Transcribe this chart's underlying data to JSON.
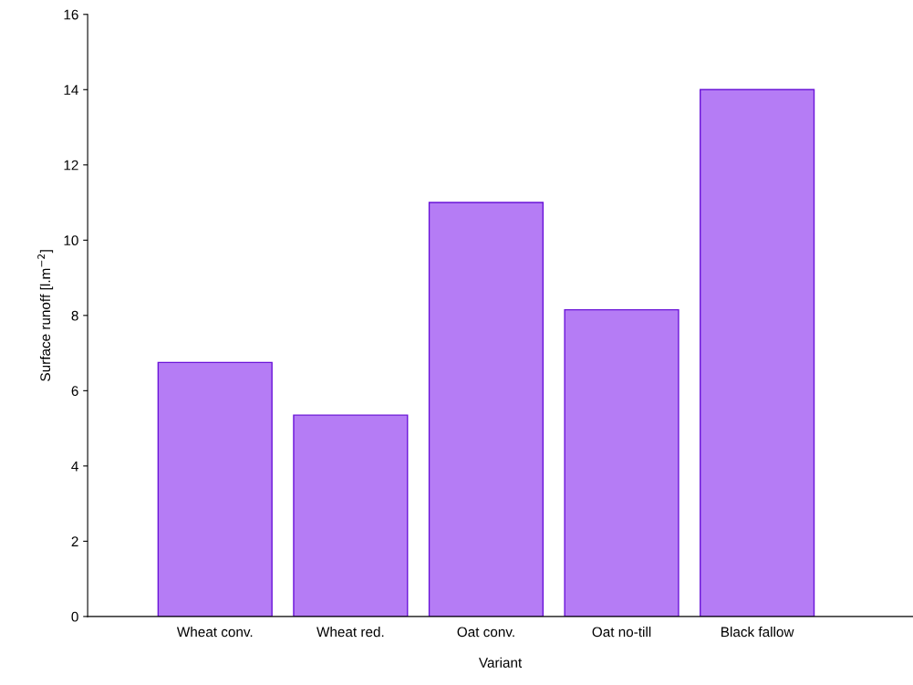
{
  "chart_data": {
    "type": "bar",
    "xlabel": "Variant",
    "ylabel": "Surface runoff [l.m$^{−2}$]",
    "categories": [
      "Wheat conv.",
      "Wheat red.",
      "Oat conv.",
      "Oat no-till",
      "Black fallow"
    ],
    "values": [
      6.75,
      5.35,
      11.0,
      8.15,
      14.0
    ],
    "color": "#b57cf5",
    "ylim": [
      0,
      16
    ],
    "yticks": [
      0,
      2,
      4,
      6,
      8,
      10,
      12,
      14,
      16
    ],
    "grid": false
  }
}
